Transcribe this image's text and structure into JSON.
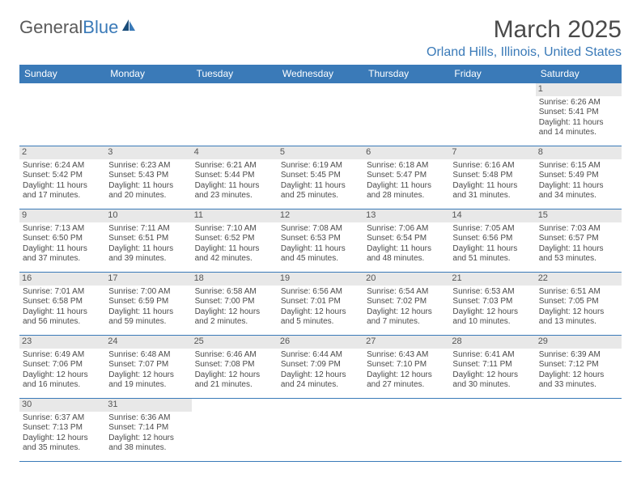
{
  "brand": {
    "part1": "General",
    "part2": "Blue"
  },
  "title": "March 2025",
  "location": "Orland Hills, Illinois, United States",
  "colors": {
    "header_bg": "#3a7ab8",
    "header_text": "#ffffff",
    "border": "#3a7ab8",
    "daynum_bg": "#e8e8e8",
    "text": "#4a4a4a",
    "accent": "#3a7ab8"
  },
  "weekdays": [
    "Sunday",
    "Monday",
    "Tuesday",
    "Wednesday",
    "Thursday",
    "Friday",
    "Saturday"
  ],
  "weeks": [
    [
      null,
      null,
      null,
      null,
      null,
      null,
      {
        "d": "1",
        "sr": "Sunrise: 6:26 AM",
        "ss": "Sunset: 5:41 PM",
        "dl": "Daylight: 11 hours and 14 minutes."
      }
    ],
    [
      {
        "d": "2",
        "sr": "Sunrise: 6:24 AM",
        "ss": "Sunset: 5:42 PM",
        "dl": "Daylight: 11 hours and 17 minutes."
      },
      {
        "d": "3",
        "sr": "Sunrise: 6:23 AM",
        "ss": "Sunset: 5:43 PM",
        "dl": "Daylight: 11 hours and 20 minutes."
      },
      {
        "d": "4",
        "sr": "Sunrise: 6:21 AM",
        "ss": "Sunset: 5:44 PM",
        "dl": "Daylight: 11 hours and 23 minutes."
      },
      {
        "d": "5",
        "sr": "Sunrise: 6:19 AM",
        "ss": "Sunset: 5:45 PM",
        "dl": "Daylight: 11 hours and 25 minutes."
      },
      {
        "d": "6",
        "sr": "Sunrise: 6:18 AM",
        "ss": "Sunset: 5:47 PM",
        "dl": "Daylight: 11 hours and 28 minutes."
      },
      {
        "d": "7",
        "sr": "Sunrise: 6:16 AM",
        "ss": "Sunset: 5:48 PM",
        "dl": "Daylight: 11 hours and 31 minutes."
      },
      {
        "d": "8",
        "sr": "Sunrise: 6:15 AM",
        "ss": "Sunset: 5:49 PM",
        "dl": "Daylight: 11 hours and 34 minutes."
      }
    ],
    [
      {
        "d": "9",
        "sr": "Sunrise: 7:13 AM",
        "ss": "Sunset: 6:50 PM",
        "dl": "Daylight: 11 hours and 37 minutes."
      },
      {
        "d": "10",
        "sr": "Sunrise: 7:11 AM",
        "ss": "Sunset: 6:51 PM",
        "dl": "Daylight: 11 hours and 39 minutes."
      },
      {
        "d": "11",
        "sr": "Sunrise: 7:10 AM",
        "ss": "Sunset: 6:52 PM",
        "dl": "Daylight: 11 hours and 42 minutes."
      },
      {
        "d": "12",
        "sr": "Sunrise: 7:08 AM",
        "ss": "Sunset: 6:53 PM",
        "dl": "Daylight: 11 hours and 45 minutes."
      },
      {
        "d": "13",
        "sr": "Sunrise: 7:06 AM",
        "ss": "Sunset: 6:54 PM",
        "dl": "Daylight: 11 hours and 48 minutes."
      },
      {
        "d": "14",
        "sr": "Sunrise: 7:05 AM",
        "ss": "Sunset: 6:56 PM",
        "dl": "Daylight: 11 hours and 51 minutes."
      },
      {
        "d": "15",
        "sr": "Sunrise: 7:03 AM",
        "ss": "Sunset: 6:57 PM",
        "dl": "Daylight: 11 hours and 53 minutes."
      }
    ],
    [
      {
        "d": "16",
        "sr": "Sunrise: 7:01 AM",
        "ss": "Sunset: 6:58 PM",
        "dl": "Daylight: 11 hours and 56 minutes."
      },
      {
        "d": "17",
        "sr": "Sunrise: 7:00 AM",
        "ss": "Sunset: 6:59 PM",
        "dl": "Daylight: 11 hours and 59 minutes."
      },
      {
        "d": "18",
        "sr": "Sunrise: 6:58 AM",
        "ss": "Sunset: 7:00 PM",
        "dl": "Daylight: 12 hours and 2 minutes."
      },
      {
        "d": "19",
        "sr": "Sunrise: 6:56 AM",
        "ss": "Sunset: 7:01 PM",
        "dl": "Daylight: 12 hours and 5 minutes."
      },
      {
        "d": "20",
        "sr": "Sunrise: 6:54 AM",
        "ss": "Sunset: 7:02 PM",
        "dl": "Daylight: 12 hours and 7 minutes."
      },
      {
        "d": "21",
        "sr": "Sunrise: 6:53 AM",
        "ss": "Sunset: 7:03 PM",
        "dl": "Daylight: 12 hours and 10 minutes."
      },
      {
        "d": "22",
        "sr": "Sunrise: 6:51 AM",
        "ss": "Sunset: 7:05 PM",
        "dl": "Daylight: 12 hours and 13 minutes."
      }
    ],
    [
      {
        "d": "23",
        "sr": "Sunrise: 6:49 AM",
        "ss": "Sunset: 7:06 PM",
        "dl": "Daylight: 12 hours and 16 minutes."
      },
      {
        "d": "24",
        "sr": "Sunrise: 6:48 AM",
        "ss": "Sunset: 7:07 PM",
        "dl": "Daylight: 12 hours and 19 minutes."
      },
      {
        "d": "25",
        "sr": "Sunrise: 6:46 AM",
        "ss": "Sunset: 7:08 PM",
        "dl": "Daylight: 12 hours and 21 minutes."
      },
      {
        "d": "26",
        "sr": "Sunrise: 6:44 AM",
        "ss": "Sunset: 7:09 PM",
        "dl": "Daylight: 12 hours and 24 minutes."
      },
      {
        "d": "27",
        "sr": "Sunrise: 6:43 AM",
        "ss": "Sunset: 7:10 PM",
        "dl": "Daylight: 12 hours and 27 minutes."
      },
      {
        "d": "28",
        "sr": "Sunrise: 6:41 AM",
        "ss": "Sunset: 7:11 PM",
        "dl": "Daylight: 12 hours and 30 minutes."
      },
      {
        "d": "29",
        "sr": "Sunrise: 6:39 AM",
        "ss": "Sunset: 7:12 PM",
        "dl": "Daylight: 12 hours and 33 minutes."
      }
    ],
    [
      {
        "d": "30",
        "sr": "Sunrise: 6:37 AM",
        "ss": "Sunset: 7:13 PM",
        "dl": "Daylight: 12 hours and 35 minutes."
      },
      {
        "d": "31",
        "sr": "Sunrise: 6:36 AM",
        "ss": "Sunset: 7:14 PM",
        "dl": "Daylight: 12 hours and 38 minutes."
      },
      null,
      null,
      null,
      null,
      null
    ]
  ]
}
